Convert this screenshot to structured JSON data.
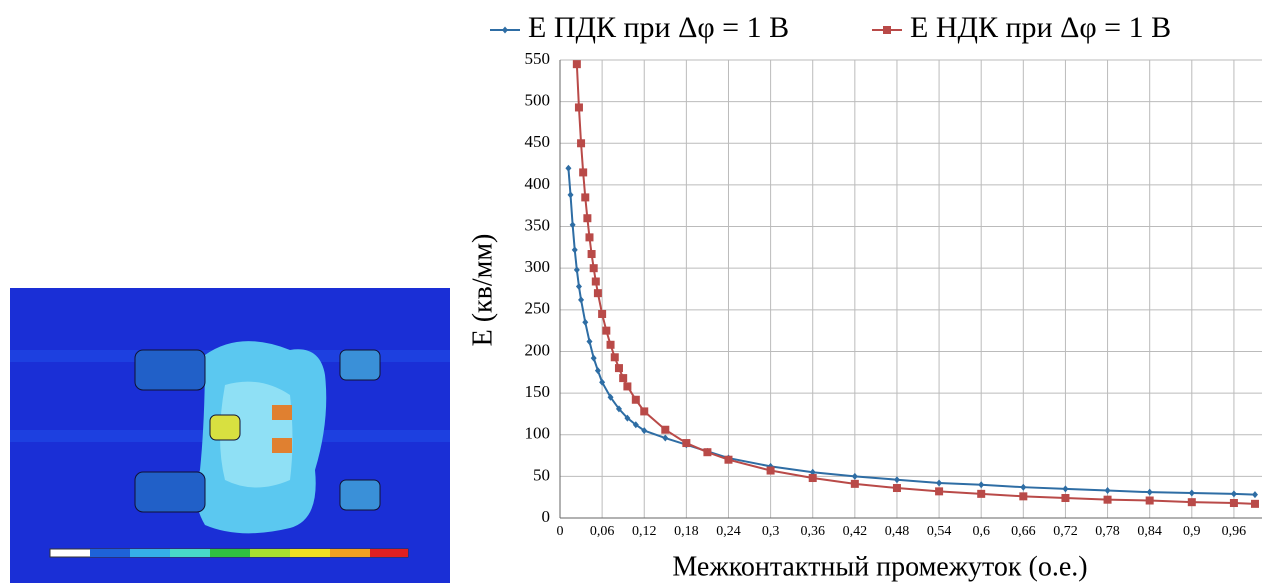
{
  "chart_data": {
    "type": "line",
    "xlabel": "Межконтактный  промежуток (о.е.)",
    "ylabel": "E (кв/мм)",
    "xlim": [
      0,
      1
    ],
    "ylim": [
      0,
      550
    ],
    "xticks": [
      0,
      {
        "value": 0.06,
        "label": "0,06"
      },
      {
        "value": 0.12,
        "label": "0,12"
      },
      {
        "value": 0.18,
        "label": "0,18"
      },
      {
        "value": 0.24,
        "label": "0,24"
      },
      {
        "value": 0.3,
        "label": "0,3"
      },
      {
        "value": 0.36,
        "label": "0,36"
      },
      {
        "value": 0.42,
        "label": "0,42"
      },
      {
        "value": 0.48,
        "label": "0,48"
      },
      {
        "value": 0.54,
        "label": "0,54"
      },
      {
        "value": 0.6,
        "label": "0,6"
      },
      {
        "value": 0.66,
        "label": "0,66"
      },
      {
        "value": 0.72,
        "label": "0,72"
      },
      {
        "value": 0.78,
        "label": "0,78"
      },
      {
        "value": 0.84,
        "label": "0,84"
      },
      {
        "value": 0.9,
        "label": "0,9"
      },
      {
        "value": 0.96,
        "label": "0,96"
      }
    ],
    "yticks": [
      0,
      50,
      100,
      150,
      200,
      250,
      300,
      350,
      400,
      450,
      500,
      550
    ],
    "grid": true,
    "legend": "top",
    "series": [
      {
        "name": "E ПДК при Δφ = 1 В",
        "color": "#2e6da4",
        "marker": "diamond",
        "x": [
          0.012,
          0.015,
          0.018,
          0.021,
          0.024,
          0.027,
          0.03,
          0.036,
          0.042,
          0.048,
          0.054,
          0.06,
          0.072,
          0.084,
          0.096,
          0.108,
          0.12,
          0.15,
          0.18,
          0.21,
          0.24,
          0.3,
          0.36,
          0.42,
          0.48,
          0.54,
          0.6,
          0.66,
          0.72,
          0.78,
          0.84,
          0.9,
          0.96,
          0.99
        ],
        "values": [
          420,
          388,
          352,
          322,
          298,
          278,
          262,
          235,
          212,
          192,
          177,
          163,
          145,
          131,
          120,
          112,
          105,
          96,
          88,
          80,
          72,
          62,
          55,
          50,
          46,
          42,
          40,
          37,
          35,
          33,
          31,
          30,
          29,
          28
        ]
      },
      {
        "name": "E НДК при Δφ  = 1 В",
        "color": "#b94a48",
        "marker": "square",
        "x": [
          0.024,
          0.027,
          0.03,
          0.033,
          0.036,
          0.039,
          0.042,
          0.045,
          0.048,
          0.051,
          0.054,
          0.06,
          0.066,
          0.072,
          0.078,
          0.084,
          0.09,
          0.096,
          0.108,
          0.12,
          0.15,
          0.18,
          0.21,
          0.24,
          0.3,
          0.36,
          0.42,
          0.48,
          0.54,
          0.6,
          0.66,
          0.72,
          0.78,
          0.84,
          0.9,
          0.96,
          0.99
        ],
        "values": [
          545,
          493,
          450,
          415,
          385,
          360,
          337,
          317,
          300,
          284,
          270,
          245,
          225,
          208,
          193,
          180,
          168,
          158,
          142,
          128,
          106,
          90,
          79,
          70,
          57,
          48,
          41,
          36,
          32,
          29,
          26,
          24,
          22,
          21,
          19,
          18,
          17
        ]
      }
    ]
  }
}
